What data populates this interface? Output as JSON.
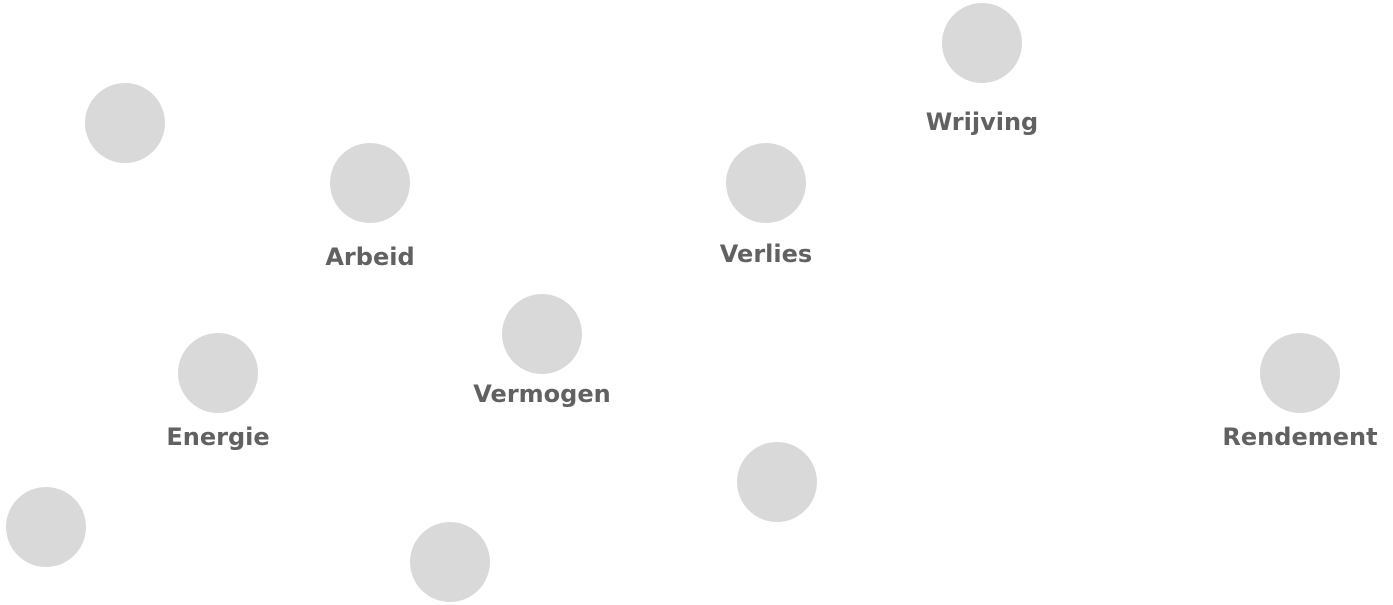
{
  "nodes": [
    {
      "label": "Wrijving"
    },
    {
      "label": "Arbeid"
    },
    {
      "label": "Verlies"
    },
    {
      "label": "Vermogen"
    },
    {
      "label": "Energie"
    },
    {
      "label": "Rendement"
    }
  ]
}
